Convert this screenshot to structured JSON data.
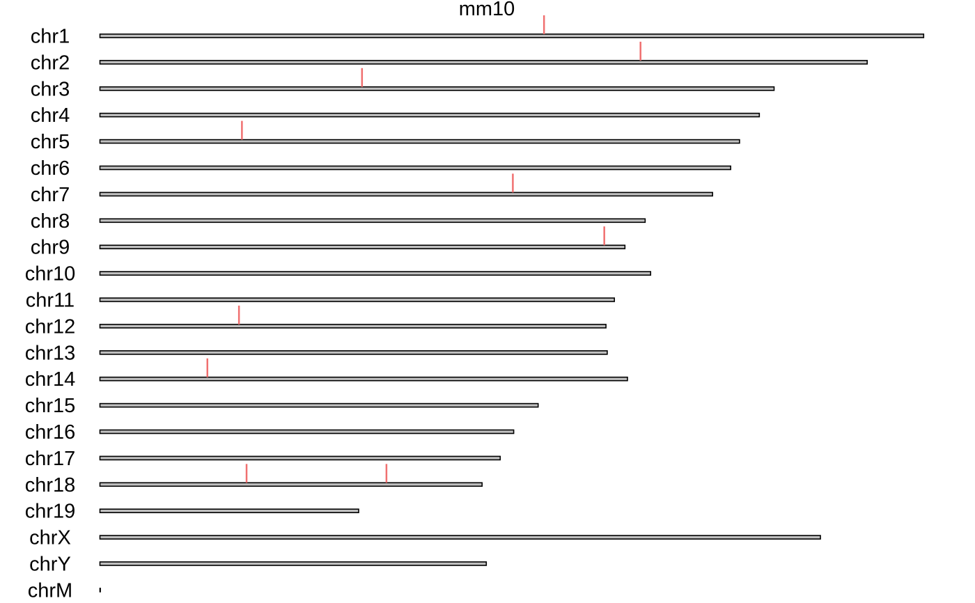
{
  "chart_data": {
    "type": "karyotype",
    "title": "mm10",
    "genome": "mm10",
    "chromosomes": [
      {
        "name": "chr1",
        "length_mb": 195.5
      },
      {
        "name": "chr2",
        "length_mb": 182.1
      },
      {
        "name": "chr3",
        "length_mb": 160.0
      },
      {
        "name": "chr4",
        "length_mb": 156.5
      },
      {
        "name": "chr5",
        "length_mb": 151.8
      },
      {
        "name": "chr6",
        "length_mb": 149.7
      },
      {
        "name": "chr7",
        "length_mb": 145.4
      },
      {
        "name": "chr8",
        "length_mb": 129.4
      },
      {
        "name": "chr9",
        "length_mb": 124.6
      },
      {
        "name": "chr10",
        "length_mb": 130.7
      },
      {
        "name": "chr11",
        "length_mb": 122.1
      },
      {
        "name": "chr12",
        "length_mb": 120.1
      },
      {
        "name": "chr13",
        "length_mb": 120.4
      },
      {
        "name": "chr14",
        "length_mb": 125.2
      },
      {
        "name": "chr15",
        "length_mb": 104.0
      },
      {
        "name": "chr16",
        "length_mb": 98.2
      },
      {
        "name": "chr17",
        "length_mb": 95.0
      },
      {
        "name": "chr18",
        "length_mb": 90.7
      },
      {
        "name": "chr19",
        "length_mb": 61.4
      },
      {
        "name": "chrX",
        "length_mb": 171.0
      },
      {
        "name": "chrY",
        "length_mb": 91.7
      },
      {
        "name": "chrM",
        "length_mb": 0.016
      }
    ],
    "markers": [
      {
        "chrom": "chr1",
        "position_mb": 105.4
      },
      {
        "chrom": "chr2",
        "position_mb": 128.3
      },
      {
        "chrom": "chr3",
        "position_mb": 62.2
      },
      {
        "chrom": "chr5",
        "position_mb": 33.7
      },
      {
        "chrom": "chr7",
        "position_mb": 98.0
      },
      {
        "chrom": "chr9",
        "position_mb": 119.7
      },
      {
        "chrom": "chr12",
        "position_mb": 33.0
      },
      {
        "chrom": "chr14",
        "position_mb": 25.5
      },
      {
        "chrom": "chr18",
        "position_mb": 34.8
      },
      {
        "chrom": "chr18",
        "position_mb": 68.0
      }
    ],
    "colors": {
      "bar_fill": "#bfbfbf",
      "bar_outline": "#000000",
      "marker": "#f07070"
    }
  }
}
